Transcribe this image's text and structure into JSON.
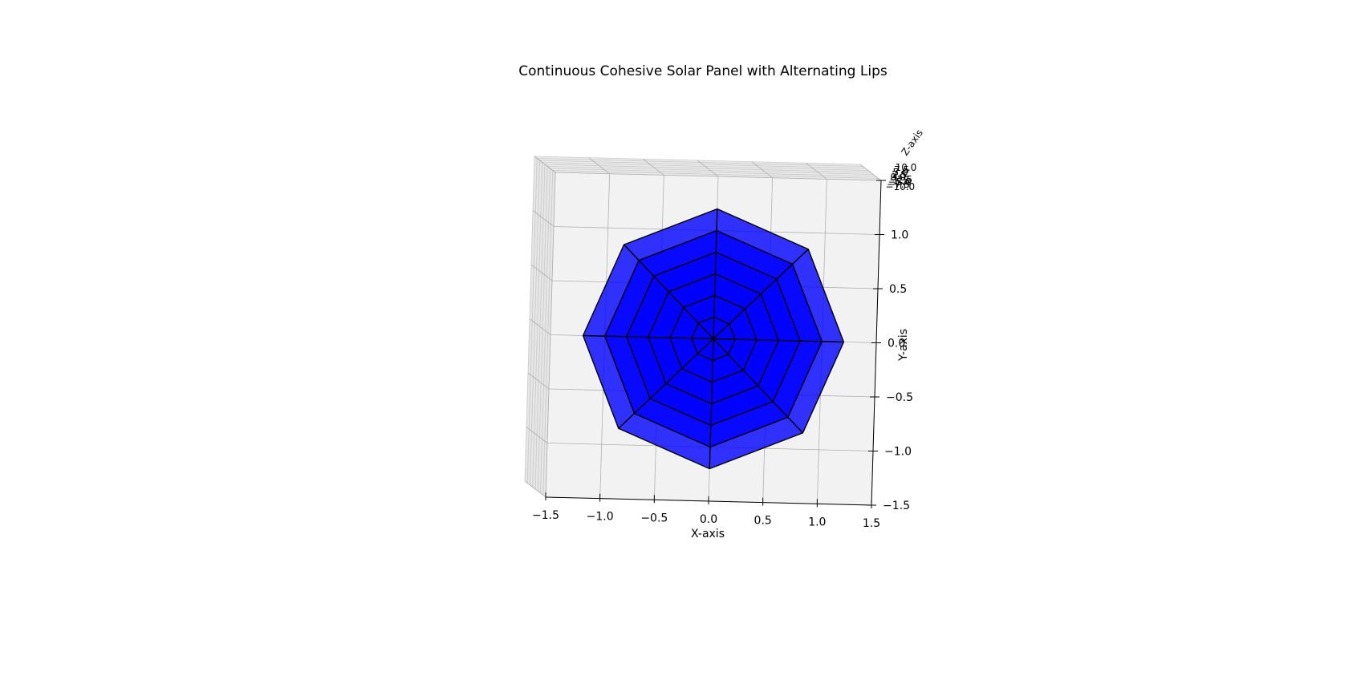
{
  "chart_data": {
    "type": "surface3d",
    "title": "Continuous Cohesive Solar Panel with Alternating Lips",
    "xlabel": "X-axis",
    "ylabel": "Y-axis",
    "zlabel": "Z-axis",
    "xlim": [
      -1.5,
      1.5
    ],
    "ylim": [
      -1.5,
      1.5
    ],
    "x_ticks": [
      "−1.5",
      "−1.0",
      "−0.5",
      "0.0",
      "0.5",
      "1.0",
      "1.5"
    ],
    "y_ticks": [
      "−1.5",
      "−1.0",
      "−0.5",
      "0.0",
      "0.5",
      "1.0",
      "1.5"
    ],
    "z_ticks": [
      "−10.0",
      "−7.5",
      "−5.0",
      "−2.5",
      "0.0",
      "2.5",
      "5.0",
      "7.5",
      "10.0"
    ],
    "panel": {
      "shape": "octagon",
      "sides": 8,
      "radius": 1.2,
      "rings": 6,
      "face_color": "#0000ff",
      "face_alpha": 0.8,
      "edge_color": "#000000"
    },
    "view": "top-down",
    "grid": true
  }
}
